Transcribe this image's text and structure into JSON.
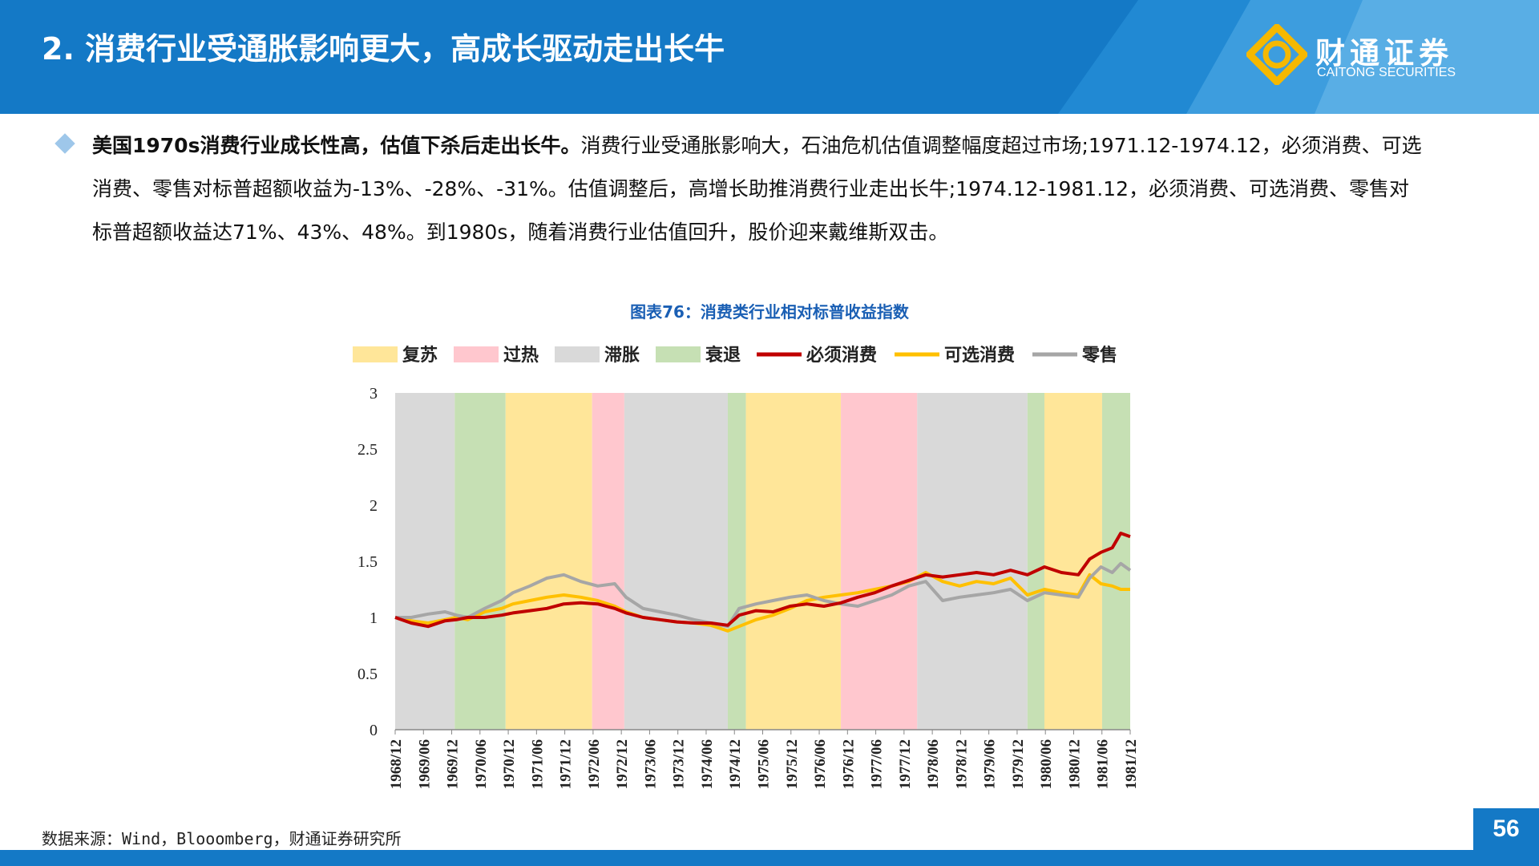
{
  "header": {
    "title": "2. 消费行业受通胀影响更大，高成长驱动走出长牛",
    "logo_cn": "财通证券",
    "logo_en": "CAITONG SECURITIES"
  },
  "paragraph": {
    "bold": "美国1970s消费行业成长性高，估值下杀后走出长牛。",
    "text": "消费行业受通胀影响大，石油危机估值调整幅度超过市场;1971.12-1974.12，必须消费、可选消费、零售对标普超额收益为-13%、-28%、-31%。估值调整后，高增长助推消费行业走出长牛;1974.12-1981.12，必须消费、可选消费、零售对标普超额收益达71%、43%、48%。到1980s，随着消费行业估值回升，股价迎来戴维斯双击。"
  },
  "chart_title": "图表76：消费类行业相对标普收益指数",
  "source": "数据来源：Wind，Blooomberg，财通证券研究所",
  "page_number": "56",
  "colors": {
    "header_blue": "#1479c6",
    "recovery": "#ffe699",
    "overheat": "#ffc7ce",
    "stagflation": "#d9d9d9",
    "recession": "#c6e0b4",
    "staples": "#c00000",
    "discretionary": "#ffc000",
    "retail": "#a6a6a6"
  },
  "chart_data": {
    "type": "line",
    "ylim": [
      0,
      3
    ],
    "yticks": [
      "0",
      "0.5",
      "1",
      "1.5",
      "2",
      "2.5",
      "3"
    ],
    "xticks": [
      "1968/12",
      "1969/06",
      "1969/12",
      "1970/06",
      "1970/12",
      "1971/06",
      "1971/12",
      "1972/06",
      "1972/12",
      "1973/06",
      "1973/12",
      "1974/06",
      "1974/12",
      "1975/06",
      "1975/12",
      "1976/06",
      "1976/12",
      "1977/06",
      "1977/12",
      "1978/06",
      "1978/12",
      "1979/06",
      "1979/12",
      "1980/06",
      "1980/12",
      "1981/06",
      "1981/12"
    ],
    "x_start": 1968.917,
    "x_end": 1981.917,
    "legend": [
      {
        "label": "复苏",
        "kind": "area",
        "color": "#ffe699"
      },
      {
        "label": "过热",
        "kind": "area",
        "color": "#ffc7ce"
      },
      {
        "label": "滞胀",
        "kind": "area",
        "color": "#d9d9d9"
      },
      {
        "label": "衰退",
        "kind": "area",
        "color": "#c6e0b4"
      },
      {
        "label": "必须消费",
        "kind": "line",
        "color": "#c00000"
      },
      {
        "label": "可选消费",
        "kind": "line",
        "color": "#ffc000"
      },
      {
        "label": "零售",
        "kind": "line",
        "color": "#a6a6a6"
      }
    ],
    "phases": [
      {
        "type": "滞胀",
        "start": 1968.917,
        "end": 1969.97
      },
      {
        "type": "衰退",
        "start": 1969.97,
        "end": 1970.87
      },
      {
        "type": "复苏",
        "start": 1970.87,
        "end": 1972.4
      },
      {
        "type": "过热",
        "start": 1972.4,
        "end": 1972.97
      },
      {
        "type": "滞胀",
        "start": 1972.97,
        "end": 1974.8
      },
      {
        "type": "衰退",
        "start": 1974.8,
        "end": 1975.12
      },
      {
        "type": "复苏",
        "start": 1975.12,
        "end": 1976.8
      },
      {
        "type": "过热",
        "start": 1976.8,
        "end": 1978.15
      },
      {
        "type": "滞胀",
        "start": 1978.15,
        "end": 1980.1
      },
      {
        "type": "衰退",
        "start": 1980.1,
        "end": 1980.4
      },
      {
        "type": "复苏",
        "start": 1980.4,
        "end": 1981.42
      },
      {
        "type": "衰退",
        "start": 1981.42,
        "end": 1981.917
      }
    ],
    "series": [
      {
        "name": "必须消费",
        "color": "#c00000",
        "x": [
          1968.917,
          1969.2,
          1969.5,
          1969.8,
          1970.0,
          1970.2,
          1970.5,
          1970.8,
          1971.0,
          1971.3,
          1971.6,
          1971.9,
          1972.2,
          1972.5,
          1972.8,
          1973.0,
          1973.3,
          1973.6,
          1973.9,
          1974.2,
          1974.5,
          1974.8,
          1975.0,
          1975.3,
          1975.6,
          1975.9,
          1976.2,
          1976.5,
          1976.8,
          1977.1,
          1977.4,
          1977.7,
          1978.0,
          1978.3,
          1978.6,
          1978.9,
          1979.2,
          1979.5,
          1979.8,
          1980.1,
          1980.4,
          1980.7,
          1981.0,
          1981.2,
          1981.4,
          1981.6,
          1981.75,
          1981.917
        ],
        "values": [
          1.0,
          0.95,
          0.92,
          0.97,
          0.98,
          1.0,
          1.0,
          1.02,
          1.04,
          1.06,
          1.08,
          1.12,
          1.13,
          1.12,
          1.08,
          1.04,
          1.0,
          0.98,
          0.96,
          0.95,
          0.95,
          0.93,
          1.02,
          1.06,
          1.05,
          1.1,
          1.12,
          1.1,
          1.13,
          1.18,
          1.22,
          1.28,
          1.33,
          1.38,
          1.36,
          1.38,
          1.4,
          1.38,
          1.42,
          1.38,
          1.45,
          1.4,
          1.38,
          1.52,
          1.58,
          1.62,
          1.75,
          1.72
        ]
      },
      {
        "name": "可选消费",
        "color": "#ffc000",
        "x": [
          1968.917,
          1969.2,
          1969.5,
          1969.8,
          1970.0,
          1970.2,
          1970.5,
          1970.8,
          1971.0,
          1971.3,
          1971.6,
          1971.9,
          1972.2,
          1972.5,
          1972.8,
          1973.0,
          1973.3,
          1973.6,
          1973.9,
          1974.2,
          1974.5,
          1974.8,
          1975.0,
          1975.3,
          1975.6,
          1975.9,
          1976.2,
          1976.5,
          1976.8,
          1977.1,
          1977.4,
          1977.7,
          1978.0,
          1978.3,
          1978.6,
          1978.9,
          1979.2,
          1979.5,
          1979.8,
          1980.1,
          1980.4,
          1980.7,
          1981.0,
          1981.2,
          1981.4,
          1981.6,
          1981.75,
          1981.917
        ],
        "values": [
          1.0,
          0.97,
          0.95,
          0.98,
          1.0,
          0.98,
          1.05,
          1.08,
          1.12,
          1.15,
          1.18,
          1.2,
          1.18,
          1.15,
          1.1,
          1.05,
          1.0,
          0.98,
          0.96,
          0.95,
          0.93,
          0.88,
          0.92,
          0.98,
          1.02,
          1.08,
          1.15,
          1.18,
          1.2,
          1.22,
          1.25,
          1.28,
          1.32,
          1.4,
          1.32,
          1.28,
          1.32,
          1.3,
          1.35,
          1.2,
          1.25,
          1.22,
          1.2,
          1.38,
          1.3,
          1.28,
          1.25,
          1.25
        ]
      },
      {
        "name": "零售",
        "color": "#a6a6a6",
        "x": [
          1968.917,
          1969.2,
          1969.5,
          1969.8,
          1970.0,
          1970.2,
          1970.5,
          1970.8,
          1971.0,
          1971.3,
          1971.6,
          1971.9,
          1972.2,
          1972.5,
          1972.8,
          1973.0,
          1973.3,
          1973.6,
          1973.9,
          1974.2,
          1974.5,
          1974.8,
          1975.0,
          1975.3,
          1975.6,
          1975.9,
          1976.2,
          1976.5,
          1976.8,
          1977.1,
          1977.4,
          1977.7,
          1978.0,
          1978.3,
          1978.6,
          1978.9,
          1979.2,
          1979.5,
          1979.8,
          1980.1,
          1980.4,
          1980.7,
          1981.0,
          1981.2,
          1981.4,
          1981.6,
          1981.75,
          1981.917
        ],
        "values": [
          1.0,
          1.0,
          1.03,
          1.05,
          1.02,
          1.0,
          1.08,
          1.15,
          1.22,
          1.28,
          1.35,
          1.38,
          1.32,
          1.28,
          1.3,
          1.18,
          1.08,
          1.05,
          1.02,
          0.98,
          0.95,
          0.92,
          1.08,
          1.12,
          1.15,
          1.18,
          1.2,
          1.15,
          1.12,
          1.1,
          1.15,
          1.2,
          1.28,
          1.32,
          1.15,
          1.18,
          1.2,
          1.22,
          1.25,
          1.15,
          1.22,
          1.2,
          1.18,
          1.35,
          1.45,
          1.4,
          1.48,
          1.42
        ]
      }
    ]
  }
}
